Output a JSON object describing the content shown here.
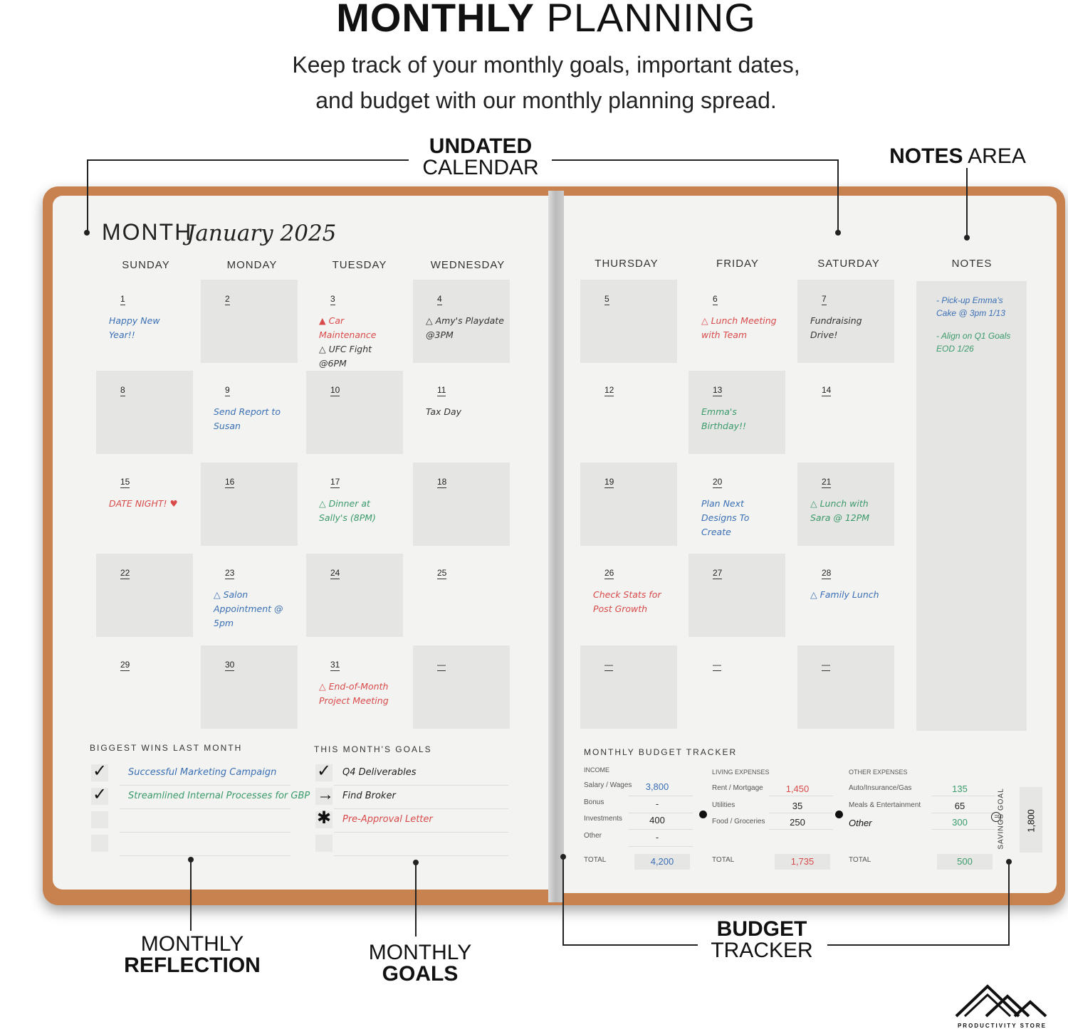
{
  "header": {
    "title_bold": "MONTHLY",
    "title_regular": "PLANNING",
    "subtitle_line1": "Keep track of your monthly goals, important dates,",
    "subtitle_line2": "and budget with our monthly planning spread."
  },
  "callouts": {
    "calendar": {
      "bold": "UNDATED",
      "regular": "CALENDAR"
    },
    "notes": {
      "bold": "NOTES",
      "regular": "AREA"
    },
    "reflection": {
      "regular": "MONTHLY",
      "bold": "REFLECTION"
    },
    "goals": {
      "regular": "MONTHLY",
      "bold": "GOALS"
    },
    "budget": {
      "bold": "BUDGET",
      "regular": "TRACKER"
    }
  },
  "planner": {
    "month_label": "MONTH",
    "month_value": "January 2025",
    "days": [
      "SUNDAY",
      "MONDAY",
      "TUESDAY",
      "WEDNESDAY",
      "THURSDAY",
      "FRIDAY",
      "SATURDAY"
    ],
    "notes_label": "NOTES",
    "notes": [
      {
        "text": "- Pick-up Emma's Cake @ 3pm 1/13",
        "color": "#3a6fb5"
      },
      {
        "text": "- Align on Q1 Goals EOD 1/26",
        "color": "#3a9a6a"
      }
    ],
    "cells": [
      {
        "day": "1",
        "entries": [
          {
            "text": "Happy New Year!!",
            "color": "#3a6fb5"
          }
        ]
      },
      {
        "day": "2",
        "entries": []
      },
      {
        "day": "3",
        "entries": [
          {
            "text": "▲ Car Maintenance",
            "color": "#d84a4a"
          },
          {
            "text": "△ UFC Fight @6PM",
            "color": "#333"
          }
        ]
      },
      {
        "day": "4",
        "entries": [
          {
            "text": "△ Amy's Playdate @3PM",
            "color": "#333"
          }
        ]
      },
      {
        "day": "5",
        "entries": []
      },
      {
        "day": "6",
        "entries": [
          {
            "text": "△ Lunch Meeting with Team",
            "color": "#d84a4a"
          }
        ]
      },
      {
        "day": "7",
        "entries": [
          {
            "text": "Fundraising Drive!",
            "color": "#333"
          }
        ]
      },
      {
        "day": "8",
        "entries": []
      },
      {
        "day": "9",
        "entries": [
          {
            "text": "Send Report to Susan",
            "color": "#3a6fb5"
          }
        ]
      },
      {
        "day": "10",
        "entries": []
      },
      {
        "day": "11",
        "entries": [
          {
            "text": "Tax Day",
            "color": "#333"
          }
        ]
      },
      {
        "day": "12",
        "entries": []
      },
      {
        "day": "13",
        "entries": [
          {
            "text": "Emma's Birthday!!",
            "color": "#3a9a6a"
          }
        ]
      },
      {
        "day": "14",
        "entries": []
      },
      {
        "day": "15",
        "entries": [
          {
            "text": "DATE NIGHT! ♥",
            "color": "#d84a4a"
          }
        ]
      },
      {
        "day": "16",
        "entries": []
      },
      {
        "day": "17",
        "entries": [
          {
            "text": "△ Dinner at Sally's (8PM)",
            "color": "#3a9a6a"
          }
        ]
      },
      {
        "day": "18",
        "entries": []
      },
      {
        "day": "19",
        "entries": []
      },
      {
        "day": "20",
        "entries": [
          {
            "text": "Plan Next Designs To Create",
            "color": "#3a6fb5"
          }
        ]
      },
      {
        "day": "21",
        "entries": [
          {
            "text": "△ Lunch with Sara @ 12PM",
            "color": "#3a9a6a"
          }
        ]
      },
      {
        "day": "22",
        "entries": []
      },
      {
        "day": "23",
        "entries": [
          {
            "text": "△ Salon Appointment @ 5pm",
            "color": "#3a6fb5"
          }
        ]
      },
      {
        "day": "24",
        "entries": []
      },
      {
        "day": "25",
        "entries": []
      },
      {
        "day": "26",
        "entries": [
          {
            "text": "Check Stats for Post Growth",
            "color": "#d84a4a"
          }
        ]
      },
      {
        "day": "27",
        "entries": []
      },
      {
        "day": "28",
        "entries": [
          {
            "text": "△ Family Lunch",
            "color": "#3a6fb5"
          }
        ]
      },
      {
        "day": "29",
        "entries": []
      },
      {
        "day": "30",
        "entries": []
      },
      {
        "day": "31",
        "entries": [
          {
            "text": "△ End-of-Month Project Meeting",
            "color": "#d84a4a"
          }
        ]
      },
      {
        "day": "—",
        "entries": []
      },
      {
        "day": "—",
        "entries": []
      },
      {
        "day": "—",
        "entries": []
      },
      {
        "day": "—",
        "entries": []
      }
    ]
  },
  "wins": {
    "label": "BIGGEST WINS LAST MONTH",
    "items": [
      {
        "mark": "✓",
        "text": "Successful Marketing Campaign",
        "color": "#3a6fb5"
      },
      {
        "mark": "✓",
        "text": "Streamlined Internal Processes for GBP",
        "color": "#3a9a6a"
      },
      {
        "mark": "",
        "text": "",
        "color": "#333"
      },
      {
        "mark": "",
        "text": "",
        "color": "#333"
      }
    ]
  },
  "goals": {
    "label": "THIS MONTH'S GOALS",
    "items": [
      {
        "mark": "✓",
        "text": "Q4 Deliverables",
        "color": "#222"
      },
      {
        "mark": "→",
        "text": "Find Broker",
        "color": "#222"
      },
      {
        "mark": "✱",
        "text": "Pre-Approval Letter",
        "color": "#d84a4a"
      },
      {
        "mark": "",
        "text": "",
        "color": "#333"
      }
    ]
  },
  "budget": {
    "label": "MONTHLY BUDGET TRACKER",
    "income": {
      "label": "INCOME",
      "rows": [
        {
          "name": "Salary / Wages",
          "value": "3,800",
          "color": "#3a6fb5"
        },
        {
          "name": "Bonus",
          "value": "-",
          "color": "#333"
        },
        {
          "name": "Investments",
          "value": "400",
          "color": "#222"
        },
        {
          "name": "Other",
          "value": "-",
          "color": "#333"
        }
      ],
      "total_label": "TOTAL",
      "total": "4,200",
      "total_color": "#3a6fb5"
    },
    "living": {
      "label": "LIVING EXPENSES",
      "rows": [
        {
          "name": "Rent / Mortgage",
          "value": "1,450",
          "color": "#d84a4a"
        },
        {
          "name": "Utilities",
          "value": "35",
          "color": "#222"
        },
        {
          "name": "Food / Groceries",
          "value": "250",
          "color": "#222"
        }
      ],
      "total_label": "TOTAL",
      "total": "1,735",
      "total_color": "#d84a4a"
    },
    "other": {
      "label": "OTHER EXPENSES",
      "rows": [
        {
          "name": "Auto/Insurance/Gas",
          "value": "135",
          "color": "#3a9a6a"
        },
        {
          "name": "Meals & Entertainment",
          "value": "65",
          "color": "#222"
        },
        {
          "name": "Other",
          "value": "300",
          "color": "#3a9a6a"
        }
      ],
      "total_label": "TOTAL",
      "total": "500",
      "total_color": "#3a9a6a"
    },
    "savings": {
      "label": "SAVINGS GOAL",
      "value": "1,800"
    }
  },
  "logo": {
    "text": "PRODUCTIVITY STORE"
  }
}
